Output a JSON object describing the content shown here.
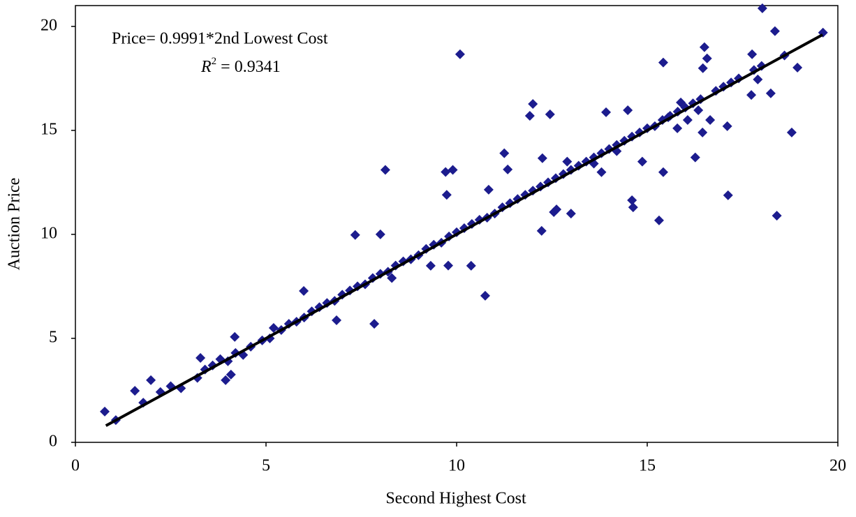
{
  "chart_data": {
    "type": "scatter",
    "xlabel": "Second Highest Cost",
    "ylabel": "Auction Price",
    "annotation": {
      "equation": "Price= 0.9991*2nd Lowest Cost",
      "r_symbol": "R",
      "r_power": "2",
      "r_value": "= 0.9341"
    },
    "xlim": [
      0,
      20
    ],
    "ylim": [
      0,
      21
    ],
    "xticks": [
      0,
      5,
      10,
      15,
      20
    ],
    "yticks": [
      0,
      5,
      10,
      15,
      20
    ],
    "color": "#1c1c8e",
    "x": [
      0.77,
      1.06,
      1.56,
      1.78,
      1.98,
      2.23,
      2.5,
      2.77,
      3.28,
      4.18,
      3.94,
      4.08,
      5.99,
      6.85,
      7.34,
      7.84,
      8.0,
      8.13,
      9.32,
      9.78,
      9.71,
      9.9,
      9.74,
      10.09,
      10.38,
      10.75,
      10.84,
      11.25,
      11.34,
      11.92,
      12.0,
      12.23,
      12.25,
      12.45,
      12.55,
      12.62,
      13.0,
      13.92,
      13.8,
      14.49,
      14.6,
      14.63,
      14.87,
      15.42,
      15.42,
      15.31,
      15.55,
      15.79,
      15.88,
      16.06,
      16.34,
      16.5,
      16.46,
      16.57,
      16.65,
      16.26,
      16.45,
      17.12,
      17.1,
      17.73,
      17.75,
      17.9,
      18.02,
      18.24,
      18.35,
      18.4,
      18.79,
      18.94,
      19.61,
      3.2,
      3.4,
      3.6,
      3.8,
      4.0,
      4.2,
      4.4,
      4.6,
      4.9,
      5.1,
      5.2,
      5.4,
      5.6,
      5.8,
      6.0,
      6.2,
      6.4,
      6.6,
      6.8,
      7.0,
      7.2,
      7.4,
      7.6,
      7.8,
      8.0,
      8.2,
      8.4,
      8.6,
      8.8,
      9.0,
      9.2,
      9.4,
      9.6,
      9.8,
      10.0,
      10.2,
      10.4,
      10.6,
      10.8,
      11.0,
      11.2,
      11.4,
      11.6,
      11.8,
      12.0,
      12.2,
      12.4,
      12.6,
      12.8,
      13.0,
      13.2,
      13.4,
      13.6,
      13.8,
      14.0,
      14.2,
      14.4,
      14.6,
      14.8,
      15.0,
      15.2,
      15.4,
      15.6,
      15.8,
      16.0,
      16.2,
      16.4,
      16.8,
      17.0,
      17.2,
      17.4,
      17.8,
      18.0,
      18.6,
      8.3,
      12.9,
      13.6,
      14.2
    ],
    "values": [
      1.48,
      1.07,
      2.48,
      1.91,
      2.99,
      2.42,
      2.7,
      2.6,
      4.06,
      5.07,
      2.99,
      3.26,
      7.28,
      5.87,
      9.97,
      5.7,
      10.0,
      13.1,
      8.49,
      8.5,
      13.0,
      13.1,
      11.9,
      18.66,
      8.49,
      7.05,
      12.15,
      13.9,
      13.12,
      15.7,
      16.27,
      10.17,
      13.66,
      15.77,
      11.07,
      11.2,
      11.0,
      15.87,
      12.99,
      15.97,
      11.64,
      11.3,
      13.5,
      18.26,
      12.99,
      10.67,
      15.63,
      15.1,
      16.34,
      15.5,
      15.97,
      19.0,
      17.99,
      18.46,
      15.5,
      13.7,
      14.9,
      11.88,
      15.2,
      16.7,
      18.66,
      17.45,
      20.87,
      16.78,
      19.77,
      10.9,
      14.9,
      18.02,
      19.7,
      3.1,
      3.5,
      3.7,
      4.0,
      3.9,
      4.3,
      4.2,
      4.6,
      4.9,
      5.0,
      5.5,
      5.4,
      5.7,
      5.8,
      6.0,
      6.3,
      6.5,
      6.7,
      6.8,
      7.1,
      7.3,
      7.5,
      7.6,
      7.9,
      8.1,
      8.2,
      8.5,
      8.7,
      8.8,
      9.0,
      9.3,
      9.5,
      9.6,
      9.9,
      10.1,
      10.3,
      10.5,
      10.7,
      10.8,
      11.0,
      11.3,
      11.5,
      11.7,
      11.9,
      12.1,
      12.3,
      12.5,
      12.7,
      12.9,
      13.1,
      13.3,
      13.5,
      13.7,
      13.9,
      14.1,
      14.3,
      14.5,
      14.7,
      14.9,
      15.1,
      15.2,
      15.5,
      15.7,
      15.9,
      16.1,
      16.3,
      16.5,
      16.9,
      17.1,
      17.3,
      17.5,
      17.9,
      18.1,
      18.6,
      7.9,
      13.5,
      13.4,
      14.0
    ],
    "fit": {
      "x": [
        0.8,
        19.6
      ],
      "values": [
        0.8,
        19.6
      ],
      "color": "#000000"
    }
  }
}
